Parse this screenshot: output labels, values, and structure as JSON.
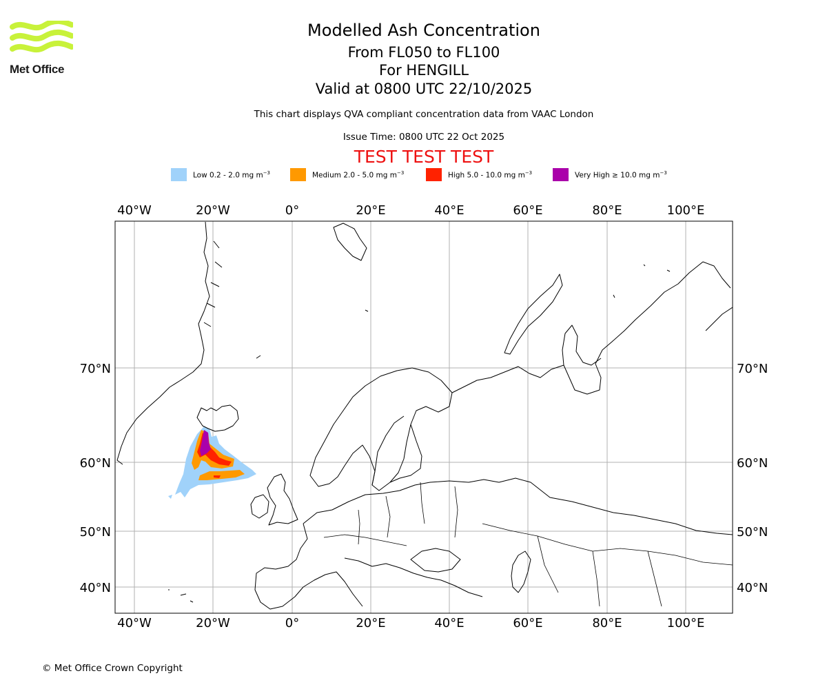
{
  "logo": {
    "text": "Met Office",
    "color": "#c8f23a"
  },
  "title": {
    "line1": "Modelled Ash Concentration",
    "line2": "From FL050 to FL100",
    "line3": "For HENGILL",
    "line4": "Valid at 0800 UTC 22/10/2025"
  },
  "subtitle": "This chart displays QVA compliant concentration data from VAAC London",
  "issue_time": "Issue Time: 0800 UTC 22 Oct 2025",
  "test_banner": "TEST TEST TEST",
  "legend": [
    {
      "label": "Low 0.2 - 2.0 mg m",
      "color": "#a0d2fa"
    },
    {
      "label": "Medium 2.0 - 5.0 mg m",
      "color": "#ff9900"
    },
    {
      "label": "High 5.0 - 10.0 mg m",
      "color": "#ff2200"
    },
    {
      "label": "Very High  ≥  10.0 mg m",
      "color": "#aa00aa"
    }
  ],
  "legend_unit_exponent": "−3",
  "map": {
    "lon_labels": [
      "40°W",
      "20°W",
      "0°",
      "20°E",
      "40°E",
      "60°E",
      "80°E",
      "100°E"
    ],
    "lat_labels": [
      "70°N",
      "60°N",
      "50°N",
      "40°N"
    ],
    "gridlines": true
  },
  "copyright": "© Met Office Crown Copyright"
}
